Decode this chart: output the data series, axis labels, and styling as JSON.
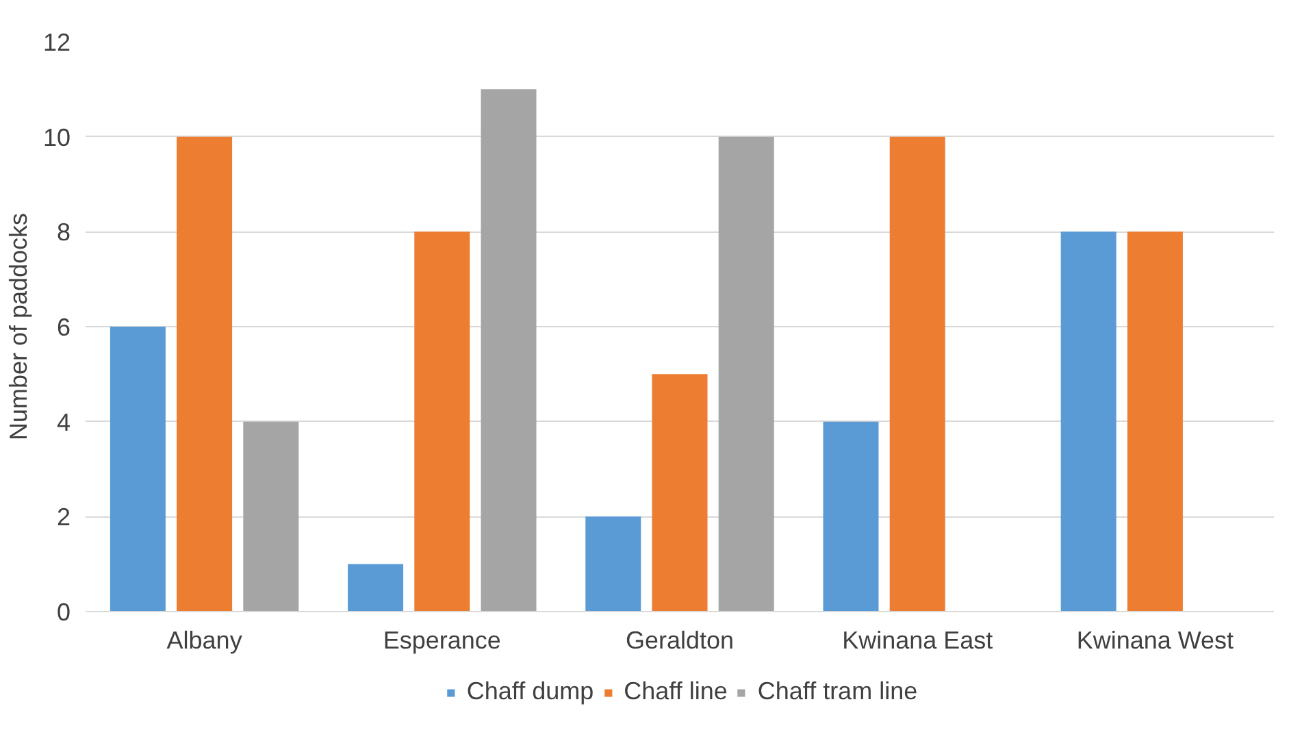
{
  "chart_data": {
    "type": "bar",
    "ylabel": "Number of paddocks",
    "categories": [
      "Albany",
      "Esperance",
      "Geraldton",
      "Kwinana East",
      "Kwinana West"
    ],
    "series": [
      {
        "name": "Chaff dump",
        "color": "#5b9bd5",
        "values": [
          6,
          1,
          2,
          4,
          8
        ]
      },
      {
        "name": "Chaff line",
        "color": "#ed7d31",
        "values": [
          10,
          8,
          5,
          10,
          8
        ]
      },
      {
        "name": "Chaff tram line",
        "color": "#a5a5a5",
        "values": [
          4,
          11,
          10,
          null,
          null
        ]
      }
    ],
    "ylim": [
      0,
      12
    ],
    "yticks": [
      0,
      2,
      4,
      6,
      8,
      10,
      12
    ],
    "grid": "y",
    "legend": "bottom"
  }
}
